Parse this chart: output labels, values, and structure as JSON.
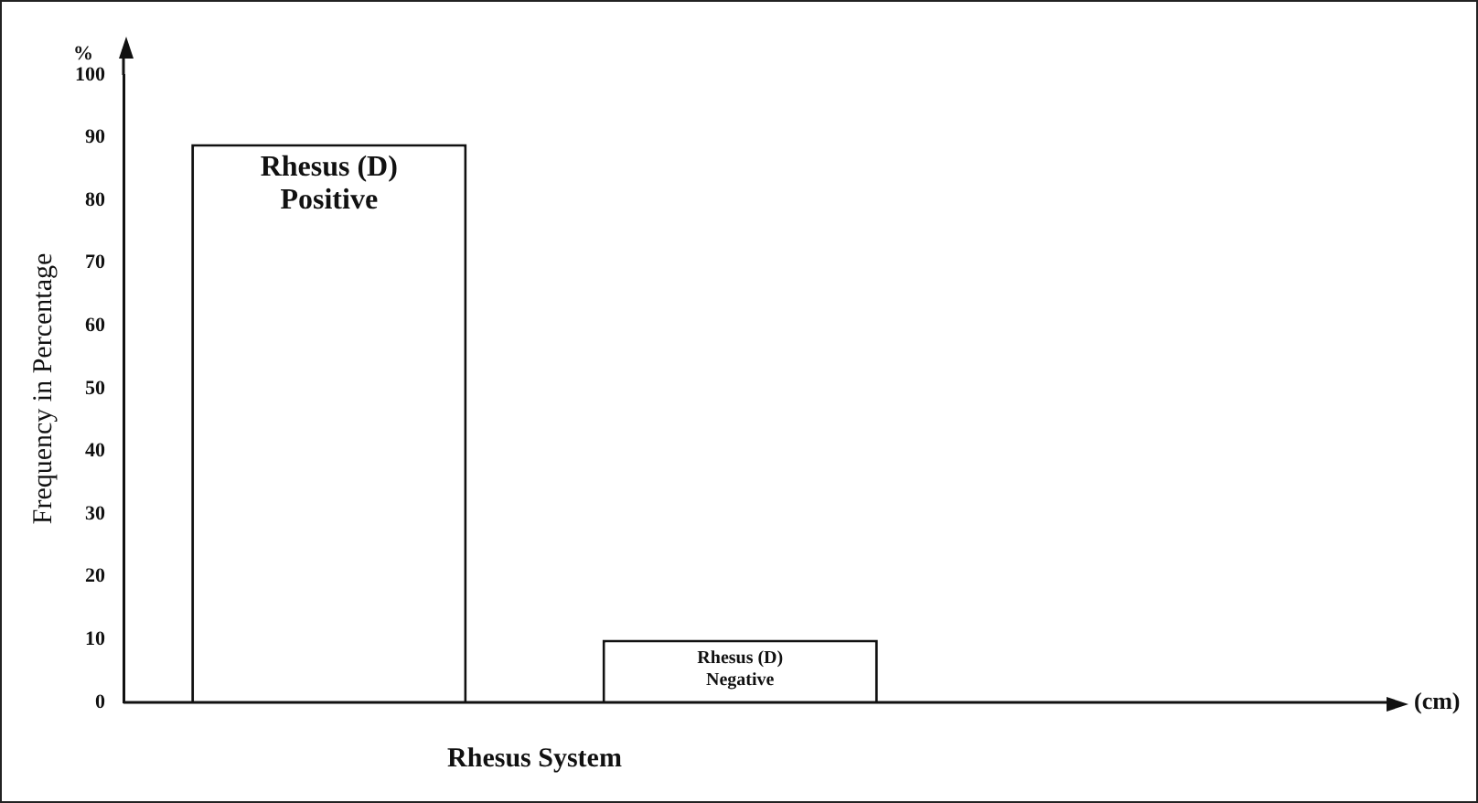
{
  "chart_data": {
    "type": "bar",
    "xlabel": "Rhesus System",
    "ylabel": "Frequency in Percentage",
    "categories": [
      "Rhesus (D) Positive",
      "Rhesus (D) Negative"
    ],
    "values": [
      89,
      10
    ],
    "color": "#ffffff",
    "ylim": [
      0,
      100
    ],
    "yticks": [
      0,
      10,
      20,
      30,
      40,
      50,
      60,
      70,
      80,
      90,
      100
    ],
    "grid": false,
    "legend": false,
    "annotations": [
      "%",
      "(cm)"
    ]
  }
}
